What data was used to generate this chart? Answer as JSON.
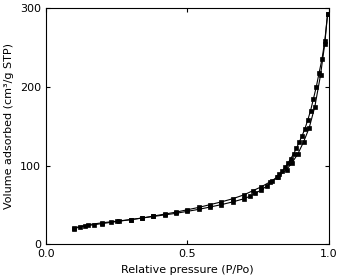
{
  "title": "",
  "xlabel": "Relative pressure (P/Po)",
  "ylabel": "Volume adsorbed (cm³/g STP)",
  "xlim": [
    0.0,
    1.0
  ],
  "ylim": [
    0,
    300
  ],
  "xticks": [
    0.0,
    0.5,
    1.0
  ],
  "yticks": [
    0,
    100,
    200,
    300
  ],
  "line_color": "#000000",
  "marker": "s",
  "markersize": 3.0,
  "adsorption_x": [
    0.1,
    0.12,
    0.14,
    0.17,
    0.2,
    0.23,
    0.26,
    0.3,
    0.34,
    0.38,
    0.42,
    0.46,
    0.5,
    0.54,
    0.58,
    0.62,
    0.66,
    0.7,
    0.73,
    0.76,
    0.79,
    0.82,
    0.85,
    0.87,
    0.89,
    0.91,
    0.93,
    0.95,
    0.97,
    0.985,
    0.995
  ],
  "adsorption_y": [
    20.0,
    22.0,
    23.5,
    25.0,
    26.5,
    28.0,
    29.5,
    31.5,
    33.5,
    36.0,
    38.5,
    41.0,
    44.0,
    47.0,
    50.5,
    54.0,
    58.0,
    63.0,
    68.0,
    73.0,
    79.0,
    86.0,
    95.0,
    104.0,
    115.0,
    130.0,
    148.0,
    175.0,
    215.0,
    255.0,
    293.0
  ],
  "desorption_x": [
    0.995,
    0.985,
    0.975,
    0.965,
    0.955,
    0.945,
    0.935,
    0.925,
    0.915,
    0.905,
    0.895,
    0.885,
    0.875,
    0.865,
    0.855,
    0.845,
    0.835,
    0.825,
    0.815,
    0.8,
    0.78,
    0.76,
    0.74,
    0.72,
    0.7,
    0.66,
    0.62,
    0.58,
    0.54,
    0.5,
    0.46,
    0.42,
    0.38,
    0.34,
    0.3,
    0.25,
    0.2,
    0.15,
    0.1
  ],
  "desorption_y": [
    293.0,
    258.0,
    235.0,
    218.0,
    200.0,
    185.0,
    170.0,
    158.0,
    147.0,
    138.0,
    130.0,
    122.0,
    115.0,
    109.0,
    103.0,
    98.0,
    93.0,
    89.0,
    85.0,
    80.0,
    74.0,
    69.0,
    65.0,
    61.0,
    58.0,
    54.0,
    50.5,
    47.5,
    44.5,
    42.0,
    39.5,
    37.5,
    35.5,
    33.5,
    31.5,
    29.5,
    27.5,
    25.0,
    21.0
  ]
}
